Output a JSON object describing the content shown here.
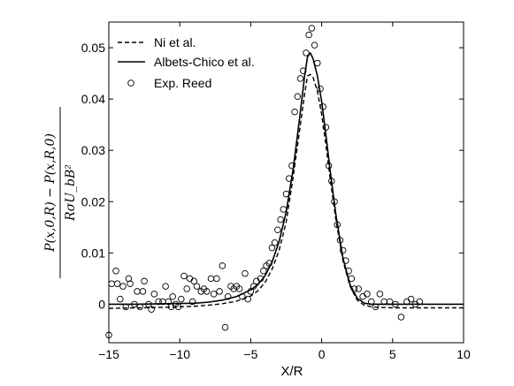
{
  "chart_data": {
    "type": "line",
    "title": "",
    "xlabel": "X/R",
    "ylabel_numerator": "P(x,0,R) − P(x,R,0)",
    "ylabel_denominator": "RσU_bB²",
    "xlim": [
      -15,
      10
    ],
    "ylim": [
      -0.0075,
      0.055
    ],
    "x_ticks": [
      -15,
      -10,
      -5,
      0,
      5,
      10
    ],
    "y_ticks": [
      0,
      0.01,
      0.02,
      0.03,
      0.04,
      0.05
    ],
    "x_tick_labels": [
      "−15",
      "−10",
      "−5",
      "0",
      "5",
      "10"
    ],
    "y_tick_labels": [
      "0",
      "0.01",
      "0.02",
      "0.03",
      "0.04",
      "0.05"
    ],
    "grid": false,
    "legend_position": "top-left",
    "series": [
      {
        "name": "Ni et al.",
        "style": "dashed",
        "color": "#000000",
        "x": [
          -15,
          -13,
          -11,
          -9,
          -8,
          -7,
          -6,
          -5,
          -4.5,
          -4,
          -3.5,
          -3,
          -2.5,
          -2,
          -1.5,
          -1.2,
          -1,
          -0.8,
          -0.6,
          -0.3,
          0,
          0.3,
          0.6,
          1,
          1.5,
          2,
          2.5,
          3,
          3.5,
          4,
          5,
          6,
          8,
          10
        ],
        "y": [
          -0.0008,
          -0.0007,
          -0.0006,
          -0.0004,
          -0.0002,
          0.0001,
          0.0006,
          0.0016,
          0.0026,
          0.0042,
          0.0068,
          0.0105,
          0.016,
          0.025,
          0.035,
          0.041,
          0.0445,
          0.0448,
          0.0442,
          0.0415,
          0.037,
          0.031,
          0.0245,
          0.0165,
          0.0085,
          0.0035,
          0.0008,
          -0.0002,
          -0.0005,
          -0.0006,
          -0.0007,
          -0.0007,
          -0.0007,
          -0.0007
        ]
      },
      {
        "name": "Albets-Chico et al.",
        "style": "solid",
        "color": "#000000",
        "x": [
          -15,
          -13,
          -11,
          -9,
          -8,
          -7,
          -6,
          -5,
          -4.5,
          -4,
          -3.5,
          -3,
          -2.5,
          -2,
          -1.5,
          -1.2,
          -1,
          -0.8,
          -0.6,
          -0.3,
          0,
          0.3,
          0.6,
          1,
          1.5,
          2,
          2.5,
          3,
          3.5,
          4,
          5,
          6,
          8,
          10
        ],
        "y": [
          0,
          0,
          0.0001,
          0.0002,
          0.0004,
          0.0008,
          0.0015,
          0.0028,
          0.0038,
          0.0055,
          0.0082,
          0.0122,
          0.018,
          0.0265,
          0.0375,
          0.0445,
          0.0482,
          0.049,
          0.0478,
          0.0445,
          0.0395,
          0.033,
          0.026,
          0.0175,
          0.009,
          0.0038,
          0.0012,
          0.0002,
          0,
          0,
          0,
          0,
          0,
          0
        ]
      },
      {
        "name": "Exp. Reed",
        "style": "markers",
        "color": "#000000",
        "x": [
          -15,
          -14.8,
          -14.5,
          -14.4,
          -14.2,
          -14,
          -13.8,
          -13.6,
          -13.5,
          -13.2,
          -13,
          -12.8,
          -12.6,
          -12.5,
          -12.2,
          -12,
          -11.8,
          -11.5,
          -11.2,
          -11,
          -10.8,
          -10.6,
          -10.5,
          -10.3,
          -10.1,
          -9.9,
          -9.7,
          -9.5,
          -9.3,
          -9.1,
          -9,
          -8.8,
          -8.5,
          -8.3,
          -8.1,
          -7.8,
          -7.6,
          -7.4,
          -7.2,
          -7,
          -6.8,
          -6.6,
          -6.4,
          -6.2,
          -6,
          -5.8,
          -5.6,
          -5.4,
          -5.2,
          -5,
          -4.8,
          -4.6,
          -4.3,
          -4.1,
          -3.9,
          -3.7,
          -3.5,
          -3.3,
          -3.1,
          -2.9,
          -2.7,
          -2.5,
          -2.3,
          -2.1,
          -1.9,
          -1.7,
          -1.5,
          -1.3,
          -1.1,
          -0.9,
          -0.7,
          -0.5,
          -0.3,
          -0.1,
          0.1,
          0.3,
          0.5,
          0.7,
          0.9,
          1.1,
          1.3,
          1.5,
          1.7,
          1.9,
          2.1,
          2.3,
          2.6,
          2.9,
          3.2,
          3.5,
          3.8,
          4.1,
          4.4,
          4.8,
          5.2,
          5.6,
          6,
          6.3,
          6.6,
          6.9
        ],
        "y": [
          -0.006,
          0.004,
          0.0065,
          0.004,
          0.001,
          0.0035,
          -0.0005,
          0.005,
          0.004,
          0,
          0.0025,
          -0.0005,
          0.0025,
          0.0045,
          0,
          -0.001,
          0.002,
          0.0005,
          0.0005,
          0.0035,
          0.0005,
          -0.0005,
          0.0015,
          0,
          -0.0005,
          0.001,
          0.0055,
          0.003,
          0.005,
          0.0005,
          0.0045,
          0.0035,
          0.0025,
          0.003,
          0.0025,
          0.005,
          0.002,
          0.005,
          0.0025,
          0.0075,
          -0.0045,
          0.0015,
          0.0035,
          0.003,
          0.0035,
          0.003,
          0.0015,
          0.006,
          0.001,
          0.0025,
          0.0035,
          0.0045,
          0.005,
          0.0065,
          0.0075,
          0.008,
          0.011,
          0.012,
          0.0145,
          0.0165,
          0.0185,
          0.0215,
          0.0245,
          0.027,
          0.0375,
          0.0405,
          0.044,
          0.0455,
          0.049,
          0.0525,
          0.0538,
          0.0505,
          0.047,
          0.042,
          0.0385,
          0.0345,
          0.027,
          0.024,
          0.02,
          0.0155,
          0.0125,
          0.0105,
          0.0085,
          0.0065,
          0.005,
          0.003,
          0.003,
          0.0015,
          0.002,
          0.0005,
          -0.0005,
          0.002,
          0.0005,
          0.0005,
          0,
          -0.0025,
          0.0005,
          0.001,
          0,
          0.0005
        ]
      }
    ]
  }
}
